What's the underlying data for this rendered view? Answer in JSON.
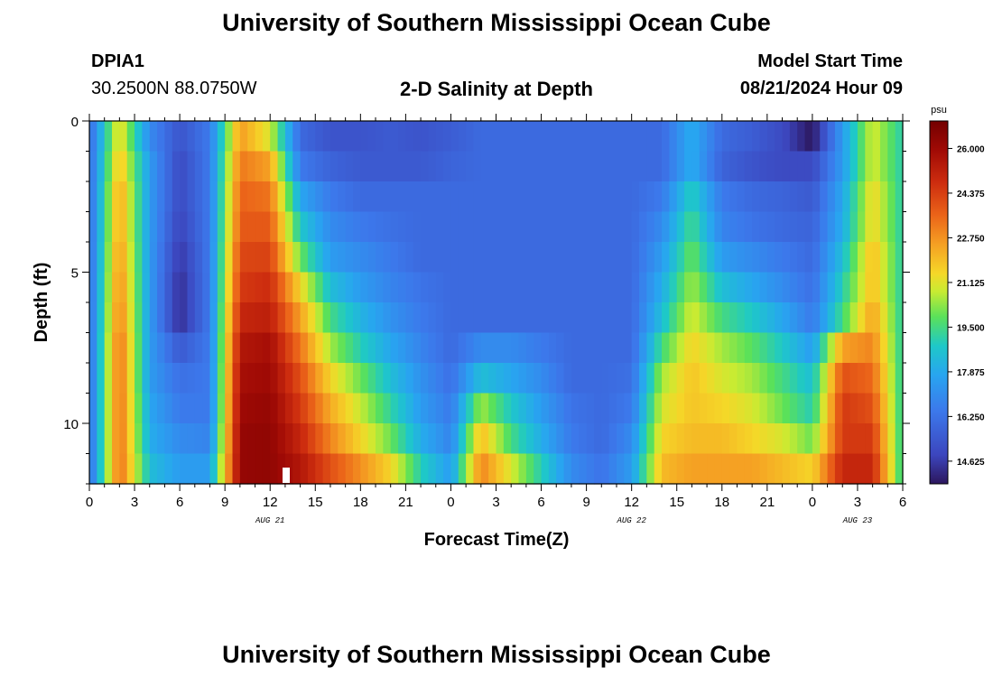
{
  "page": {
    "title": "University of Southern Mississippi Ocean Cube",
    "footer_title": "University of Southern Mississippi Ocean Cube",
    "station_id": "DPIA1",
    "coordinates": "30.2500N  88.0750W",
    "plot_title": "2-D Salinity at Depth",
    "model_start_label": "Model Start Time",
    "model_start_value": "08/21/2024 Hour 09"
  },
  "chart_data": {
    "type": "heatmap",
    "title": "2-D Salinity at Depth",
    "xlabel": "Forecast Time(Z)",
    "ylabel": "Depth (ft)",
    "x_range_hours": [
      0,
      54
    ],
    "y_range_ft": [
      0,
      12
    ],
    "x_tick_hours": [
      0,
      3,
      6,
      9,
      12,
      15,
      18,
      21,
      24,
      27,
      30,
      33,
      36,
      39,
      42,
      45,
      48,
      51,
      54
    ],
    "x_tick_labels": [
      "0",
      "3",
      "6",
      "9",
      "12",
      "15",
      "18",
      "21",
      "0",
      "3",
      "6",
      "9",
      "12",
      "15",
      "18",
      "21",
      "0",
      "3",
      "6"
    ],
    "y_tick_values": [
      0,
      5,
      10
    ],
    "y_tick_labels": [
      "0",
      "5",
      "10"
    ],
    "date_labels": [
      {
        "hour": 12,
        "text": "AUG 21"
      },
      {
        "hour": 36,
        "text": "AUG 22"
      },
      {
        "hour": 51,
        "text": "AUG 23"
      }
    ],
    "depth_levels_ft": [
      0,
      1,
      2,
      3,
      4,
      5,
      6,
      7,
      8,
      9,
      10,
      11
    ],
    "time_step_hours": 0.5,
    "hours": [
      0,
      2,
      4,
      6,
      8,
      10,
      12,
      14,
      16,
      18,
      20,
      22,
      24,
      26,
      28,
      30,
      32,
      34,
      36,
      38,
      40,
      42,
      44,
      46,
      48,
      50,
      52,
      54
    ],
    "salinity_grid_psu": [
      [
        16.0,
        21.5,
        17.0,
        15.3,
        16.5,
        22.6,
        21.0,
        16.0,
        15.3,
        15.3,
        15.5,
        15.3,
        15.6,
        16.0,
        16.0,
        16.0,
        16.0,
        16.0,
        16.0,
        16.0,
        18.0,
        16.0,
        15.6,
        15.0,
        13.8,
        17.5,
        21.0,
        19.0
      ],
      [
        16.0,
        22.0,
        17.5,
        15.0,
        16.5,
        23.2,
        22.5,
        16.5,
        15.8,
        15.5,
        15.5,
        15.5,
        15.8,
        16.0,
        16.0,
        16.0,
        16.0,
        16.0,
        16.0,
        16.0,
        18.0,
        15.8,
        15.3,
        15.0,
        15.0,
        17.5,
        21.0,
        19.0
      ],
      [
        16.0,
        22.5,
        17.5,
        15.0,
        16.5,
        23.6,
        23.3,
        17.8,
        16.5,
        16.0,
        16.0,
        16.0,
        16.0,
        16.0,
        16.0,
        16.0,
        16.0,
        16.0,
        16.0,
        16.5,
        19.0,
        16.5,
        16.0,
        15.8,
        15.5,
        17.8,
        21.5,
        19.0
      ],
      [
        16.0,
        22.5,
        17.5,
        14.8,
        16.5,
        23.8,
        23.8,
        18.8,
        17.0,
        16.5,
        16.2,
        16.0,
        16.0,
        16.0,
        16.0,
        16.0,
        16.0,
        16.0,
        16.0,
        17.0,
        19.5,
        16.8,
        16.3,
        16.0,
        15.8,
        18.0,
        21.5,
        19.0
      ],
      [
        16.0,
        22.8,
        17.5,
        14.5,
        16.5,
        24.2,
        24.3,
        20.0,
        17.5,
        17.0,
        16.5,
        16.0,
        16.0,
        16.0,
        16.0,
        16.0,
        16.0,
        16.0,
        16.0,
        17.5,
        20.0,
        17.5,
        17.0,
        16.5,
        16.0,
        18.5,
        22.0,
        19.0
      ],
      [
        16.0,
        23.0,
        17.5,
        14.3,
        16.5,
        24.5,
        24.8,
        21.5,
        18.5,
        17.5,
        16.8,
        16.3,
        16.0,
        16.0,
        16.0,
        16.0,
        16.0,
        16.0,
        16.0,
        18.0,
        20.5,
        18.5,
        17.8,
        17.0,
        16.2,
        19.0,
        22.0,
        19.0
      ],
      [
        16.0,
        23.2,
        17.5,
        14.3,
        16.5,
        25.0,
        25.2,
        22.5,
        19.5,
        18.2,
        17.2,
        16.5,
        16.0,
        16.0,
        16.0,
        16.0,
        16.0,
        16.0,
        16.0,
        18.5,
        21.0,
        19.5,
        18.8,
        17.8,
        16.5,
        19.5,
        22.5,
        19.0
      ],
      [
        16.0,
        23.5,
        17.5,
        15.5,
        16.5,
        25.5,
        25.8,
        23.3,
        20.5,
        19.0,
        17.8,
        16.8,
        16.0,
        17.0,
        17.0,
        16.5,
        16.0,
        16.0,
        16.0,
        19.5,
        21.5,
        20.5,
        19.8,
        18.8,
        17.5,
        22.5,
        23.0,
        19.0
      ],
      [
        16.0,
        23.5,
        17.5,
        16.2,
        16.5,
        25.8,
        26.0,
        24.0,
        21.5,
        20.0,
        18.5,
        17.2,
        16.2,
        18.5,
        17.8,
        17.0,
        16.0,
        16.0,
        16.2,
        20.5,
        21.8,
        21.0,
        20.5,
        19.5,
        18.5,
        24.0,
        23.5,
        19.0
      ],
      [
        16.0,
        23.5,
        17.8,
        16.5,
        16.5,
        26.0,
        26.2,
        24.5,
        22.3,
        20.8,
        19.2,
        17.5,
        16.5,
        20.5,
        18.8,
        17.5,
        16.3,
        16.0,
        16.5,
        21.0,
        21.8,
        21.5,
        21.0,
        20.0,
        19.0,
        24.5,
        24.0,
        19.0
      ],
      [
        16.0,
        23.5,
        18.0,
        17.0,
        16.8,
        26.2,
        26.3,
        25.0,
        23.0,
        21.5,
        20.0,
        18.0,
        16.8,
        22.0,
        19.5,
        18.0,
        16.5,
        16.0,
        17.0,
        21.5,
        22.0,
        22.0,
        21.5,
        21.0,
        20.0,
        24.5,
        24.5,
        19.0
      ],
      [
        16.0,
        23.5,
        18.5,
        17.5,
        17.5,
        26.2,
        26.3,
        25.5,
        24.0,
        22.8,
        21.5,
        19.0,
        17.5,
        23.0,
        21.0,
        19.0,
        17.0,
        16.3,
        17.5,
        22.0,
        22.5,
        22.5,
        22.5,
        22.0,
        21.5,
        25.0,
        25.0,
        19.0
      ]
    ],
    "colorbar": {
      "unit": "psu",
      "min": 13.8,
      "max": 27.0,
      "tick_values": [
        26.0,
        24.375,
        22.75,
        21.125,
        19.5,
        17.875,
        16.25,
        14.625
      ],
      "tick_labels": [
        "26.000",
        "24.375",
        "22.750",
        "21.125",
        "19.500",
        "17.875",
        "16.250",
        "14.625"
      ]
    }
  }
}
